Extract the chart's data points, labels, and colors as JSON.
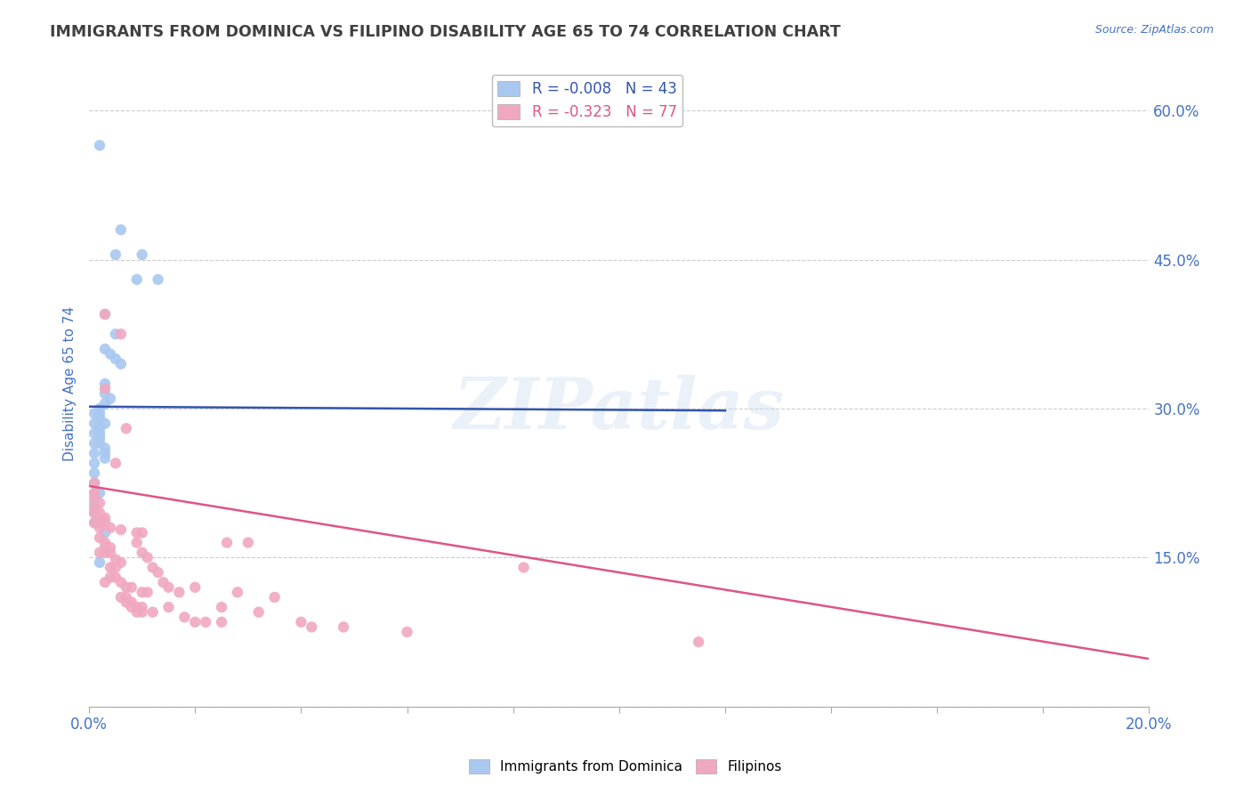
{
  "title": "IMMIGRANTS FROM DOMINICA VS FILIPINO DISABILITY AGE 65 TO 74 CORRELATION CHART",
  "source": "Source: ZipAtlas.com",
  "ylabel": "Disability Age 65 to 74",
  "xlim": [
    0.0,
    0.2
  ],
  "ylim": [
    0.0,
    0.65
  ],
  "xticks": [
    0.0,
    0.02,
    0.04,
    0.06,
    0.08,
    0.1,
    0.12,
    0.14,
    0.16,
    0.18,
    0.2
  ],
  "yticks": [
    0.0,
    0.15,
    0.3,
    0.45,
    0.6
  ],
  "dominica_color": "#a8c8f0",
  "filipino_color": "#f0a8c0",
  "dominica_line_color": "#3355aa",
  "filipino_line_color": "#dd5588",
  "dominica_R": -0.008,
  "dominica_N": 43,
  "filipino_R": -0.323,
  "filipino_N": 77,
  "watermark": "ZIPatlas",
  "background_color": "#ffffff",
  "grid_color": "#cccccc",
  "title_color": "#404040",
  "axis_color": "#4472c4",
  "dominica_line_y0": 0.302,
  "dominica_line_y1": 0.298,
  "filipino_line_y0": 0.222,
  "filipino_line_y1": 0.048,
  "dominica_scatter": [
    [
      0.002,
      0.565
    ],
    [
      0.006,
      0.48
    ],
    [
      0.005,
      0.455
    ],
    [
      0.01,
      0.455
    ],
    [
      0.009,
      0.43
    ],
    [
      0.013,
      0.43
    ],
    [
      0.003,
      0.395
    ],
    [
      0.005,
      0.375
    ],
    [
      0.003,
      0.36
    ],
    [
      0.004,
      0.355
    ],
    [
      0.005,
      0.35
    ],
    [
      0.006,
      0.345
    ],
    [
      0.003,
      0.325
    ],
    [
      0.003,
      0.315
    ],
    [
      0.004,
      0.31
    ],
    [
      0.003,
      0.305
    ],
    [
      0.002,
      0.3
    ],
    [
      0.002,
      0.295
    ],
    [
      0.002,
      0.29
    ],
    [
      0.003,
      0.285
    ],
    [
      0.002,
      0.28
    ],
    [
      0.002,
      0.275
    ],
    [
      0.002,
      0.27
    ],
    [
      0.002,
      0.265
    ],
    [
      0.003,
      0.26
    ],
    [
      0.003,
      0.255
    ],
    [
      0.003,
      0.25
    ],
    [
      0.001,
      0.295
    ],
    [
      0.001,
      0.285
    ],
    [
      0.001,
      0.275
    ],
    [
      0.001,
      0.265
    ],
    [
      0.001,
      0.255
    ],
    [
      0.001,
      0.245
    ],
    [
      0.001,
      0.235
    ],
    [
      0.001,
      0.225
    ],
    [
      0.001,
      0.215
    ],
    [
      0.002,
      0.215
    ],
    [
      0.001,
      0.205
    ],
    [
      0.001,
      0.195
    ],
    [
      0.001,
      0.185
    ],
    [
      0.002,
      0.185
    ],
    [
      0.003,
      0.175
    ],
    [
      0.002,
      0.145
    ]
  ],
  "filipino_scatter": [
    [
      0.003,
      0.395
    ],
    [
      0.006,
      0.375
    ],
    [
      0.003,
      0.32
    ],
    [
      0.007,
      0.28
    ],
    [
      0.005,
      0.245
    ],
    [
      0.001,
      0.225
    ],
    [
      0.001,
      0.215
    ],
    [
      0.001,
      0.21
    ],
    [
      0.002,
      0.205
    ],
    [
      0.001,
      0.2
    ],
    [
      0.001,
      0.195
    ],
    [
      0.002,
      0.195
    ],
    [
      0.002,
      0.19
    ],
    [
      0.003,
      0.19
    ],
    [
      0.001,
      0.185
    ],
    [
      0.002,
      0.185
    ],
    [
      0.003,
      0.185
    ],
    [
      0.002,
      0.18
    ],
    [
      0.004,
      0.18
    ],
    [
      0.006,
      0.178
    ],
    [
      0.009,
      0.175
    ],
    [
      0.01,
      0.175
    ],
    [
      0.002,
      0.17
    ],
    [
      0.003,
      0.165
    ],
    [
      0.009,
      0.165
    ],
    [
      0.003,
      0.16
    ],
    [
      0.004,
      0.16
    ],
    [
      0.002,
      0.155
    ],
    [
      0.003,
      0.155
    ],
    [
      0.004,
      0.155
    ],
    [
      0.01,
      0.155
    ],
    [
      0.011,
      0.15
    ],
    [
      0.005,
      0.148
    ],
    [
      0.006,
      0.145
    ],
    [
      0.004,
      0.14
    ],
    [
      0.005,
      0.14
    ],
    [
      0.012,
      0.14
    ],
    [
      0.013,
      0.135
    ],
    [
      0.004,
      0.13
    ],
    [
      0.005,
      0.13
    ],
    [
      0.003,
      0.125
    ],
    [
      0.006,
      0.125
    ],
    [
      0.014,
      0.125
    ],
    [
      0.007,
      0.12
    ],
    [
      0.008,
      0.12
    ],
    [
      0.015,
      0.12
    ],
    [
      0.01,
      0.115
    ],
    [
      0.011,
      0.115
    ],
    [
      0.017,
      0.115
    ],
    [
      0.006,
      0.11
    ],
    [
      0.007,
      0.11
    ],
    [
      0.007,
      0.105
    ],
    [
      0.008,
      0.105
    ],
    [
      0.008,
      0.1
    ],
    [
      0.009,
      0.1
    ],
    [
      0.01,
      0.1
    ],
    [
      0.015,
      0.1
    ],
    [
      0.009,
      0.095
    ],
    [
      0.01,
      0.095
    ],
    [
      0.012,
      0.095
    ],
    [
      0.018,
      0.09
    ],
    [
      0.02,
      0.085
    ],
    [
      0.022,
      0.085
    ],
    [
      0.025,
      0.085
    ],
    [
      0.026,
      0.165
    ],
    [
      0.03,
      0.165
    ],
    [
      0.02,
      0.12
    ],
    [
      0.028,
      0.115
    ],
    [
      0.035,
      0.11
    ],
    [
      0.025,
      0.1
    ],
    [
      0.032,
      0.095
    ],
    [
      0.04,
      0.085
    ],
    [
      0.042,
      0.08
    ],
    [
      0.048,
      0.08
    ],
    [
      0.06,
      0.075
    ],
    [
      0.082,
      0.14
    ],
    [
      0.115,
      0.065
    ]
  ]
}
